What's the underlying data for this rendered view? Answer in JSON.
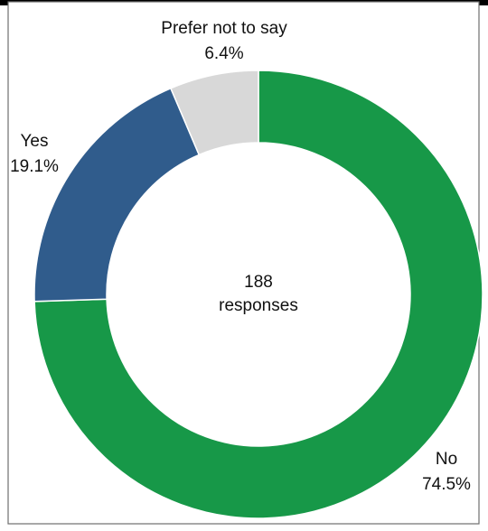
{
  "chart_data": {
    "type": "pie",
    "variant": "donut",
    "title": "",
    "total_label": "188",
    "total_sublabel": "responses",
    "legend": "none",
    "slices": [
      {
        "name": "No",
        "value": 74.5,
        "value_label": "74.5%",
        "color": "#179848"
      },
      {
        "name": "Yes",
        "value": 19.1,
        "value_label": "19.1%",
        "color": "#305c8c"
      },
      {
        "name": "Prefer not to say",
        "value": 6.4,
        "value_label": "6.4%",
        "color": "#d8d8d8"
      }
    ],
    "start_angle": "12 o'clock",
    "direction": "clockwise"
  }
}
